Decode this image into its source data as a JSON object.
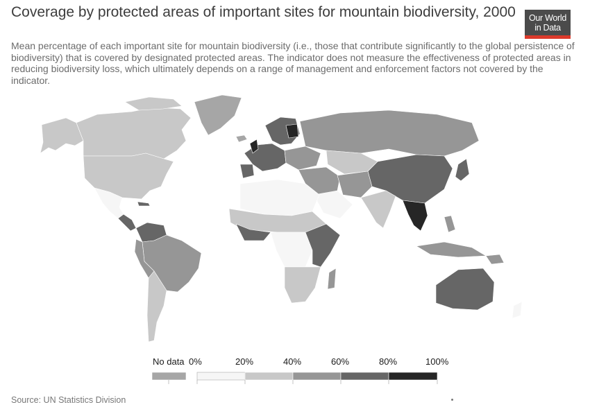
{
  "header": {
    "title": "Coverage by protected areas of important sites for mountain biodiversity, 2000",
    "subtitle": "Mean percentage of each important site for mountain biodiversity (i.e., those that contribute significantly to the global persistence of biodiversity) that is covered by designated protected areas. The indicator does not measure the effectiveness of protected areas in reducing biodiversity loss, which ultimately depends on a range of management and enforcement factors not covered by the indicator."
  },
  "logo": {
    "line1": "Our World",
    "line2": "in Data"
  },
  "legend": {
    "no_data_label": "No data",
    "no_data_color": "#a6a6a6",
    "bins": [
      {
        "from": "0%",
        "color": "#f6f6f6"
      },
      {
        "from": "20%",
        "color": "#c8c8c8"
      },
      {
        "from": "40%",
        "color": "#969696"
      },
      {
        "from": "60%",
        "color": "#666666"
      },
      {
        "from": "80%",
        "color": "#262626"
      }
    ],
    "end_label": "100%"
  },
  "colors": {
    "border": "#ffffff",
    "outline": "#7a7a7a"
  },
  "source": "Source: UN Statistics Division"
}
